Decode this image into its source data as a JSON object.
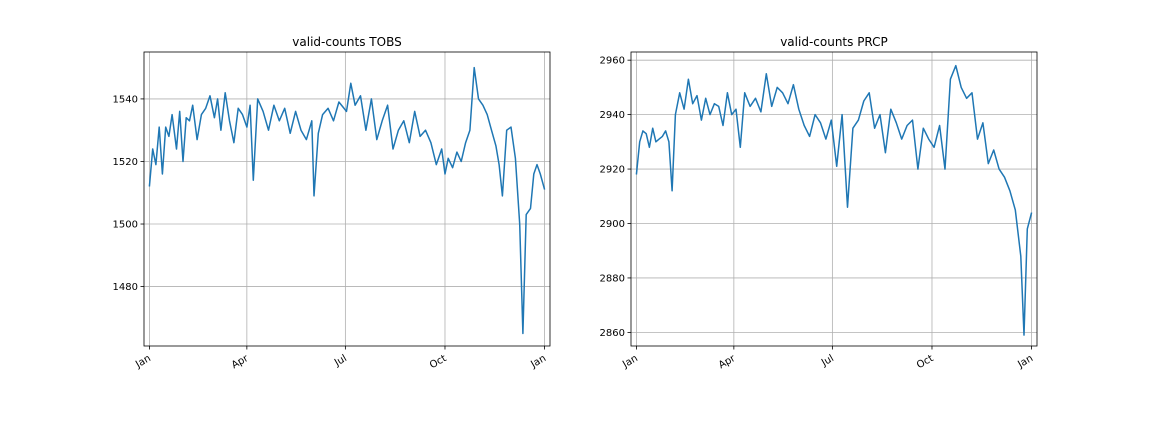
{
  "chart_data": [
    {
      "type": "line",
      "title": "valid-counts TOBS",
      "xlabel": "",
      "ylabel": "",
      "x_ticks": [
        "Jan",
        "Apr",
        "Jul",
        "Oct",
        "Jan"
      ],
      "y_ticks": [
        1480,
        1500,
        1520,
        1540
      ],
      "xlim": [
        -5,
        370
      ],
      "ylim": [
        1461,
        1555
      ],
      "grid": true,
      "color": "#1f77b4",
      "series": [
        {
          "x": [
            0,
            3,
            6,
            9,
            12,
            15,
            18,
            21,
            25,
            28,
            31,
            34,
            37,
            40,
            44,
            48,
            52,
            56,
            60,
            63,
            66,
            70,
            74,
            78,
            82,
            86,
            90,
            93,
            96,
            100,
            105,
            110,
            115,
            120,
            125,
            130,
            135,
            140,
            145,
            150,
            152,
            156,
            160,
            165,
            170,
            175,
            182,
            186,
            190,
            195,
            200,
            205,
            210,
            215,
            220,
            225,
            230,
            235,
            240,
            245,
            250,
            255,
            260,
            265,
            270,
            273,
            276,
            280,
            284,
            288,
            292,
            296,
            300,
            304,
            308,
            312,
            316,
            320,
            323,
            326,
            330,
            334,
            338,
            342,
            345,
            348,
            352,
            355,
            358,
            361,
            365
          ],
          "values": [
            1512,
            1524,
            1519,
            1531,
            1516,
            1531,
            1528,
            1535,
            1524,
            1536,
            1520,
            1534,
            1533,
            1538,
            1527,
            1535,
            1537,
            1541,
            1534,
            1540,
            1530,
            1542,
            1533,
            1526,
            1537,
            1535,
            1531,
            1538,
            1514,
            1540,
            1536,
            1530,
            1538,
            1533,
            1537,
            1529,
            1536,
            1530,
            1527,
            1533,
            1509,
            1529,
            1535,
            1537,
            1533,
            1539,
            1536,
            1545,
            1538,
            1541,
            1530,
            1540,
            1527,
            1533,
            1538,
            1524,
            1530,
            1533,
            1526,
            1536,
            1528,
            1530,
            1526,
            1519,
            1524,
            1516,
            1521,
            1518,
            1523,
            1520,
            1526,
            1530,
            1550,
            1540,
            1538,
            1535,
            1530,
            1525,
            1519,
            1509,
            1530,
            1531,
            1521,
            1500,
            1465,
            1503,
            1505,
            1516,
            1519,
            1516,
            1511
          ]
        }
      ]
    },
    {
      "type": "line",
      "title": "valid-counts PRCP",
      "xlabel": "",
      "ylabel": "",
      "x_ticks": [
        "Jan",
        "Apr",
        "Jul",
        "Oct",
        "Jan"
      ],
      "y_ticks": [
        2860,
        2880,
        2900,
        2920,
        2940,
        2960
      ],
      "xlim": [
        -5,
        370
      ],
      "ylim": [
        2855,
        2963
      ],
      "grid": true,
      "color": "#1f77b4",
      "series": [
        {
          "x": [
            0,
            3,
            6,
            9,
            12,
            15,
            18,
            21,
            24,
            27,
            30,
            33,
            36,
            40,
            44,
            48,
            52,
            56,
            60,
            64,
            68,
            72,
            76,
            80,
            84,
            88,
            92,
            96,
            100,
            105,
            110,
            115,
            120,
            125,
            130,
            135,
            140,
            145,
            150,
            155,
            160,
            165,
            170,
            175,
            180,
            185,
            190,
            195,
            200,
            205,
            210,
            215,
            220,
            225,
            230,
            235,
            240,
            245,
            250,
            255,
            260,
            265,
            270,
            275,
            280,
            285,
            290,
            295,
            300,
            305,
            310,
            315,
            320,
            325,
            330,
            335,
            340,
            345,
            350,
            355,
            358,
            361,
            365
          ],
          "values": [
            2918,
            2930,
            2934,
            2933,
            2928,
            2935,
            2930,
            2931,
            2932,
            2934,
            2930,
            2912,
            2940,
            2948,
            2942,
            2953,
            2944,
            2947,
            2938,
            2946,
            2940,
            2944,
            2943,
            2936,
            2948,
            2940,
            2942,
            2928,
            2948,
            2943,
            2946,
            2941,
            2955,
            2943,
            2950,
            2948,
            2944,
            2951,
            2942,
            2936,
            2932,
            2940,
            2937,
            2931,
            2938,
            2921,
            2940,
            2906,
            2935,
            2938,
            2945,
            2948,
            2935,
            2940,
            2926,
            2942,
            2937,
            2931,
            2936,
            2938,
            2920,
            2935,
            2931,
            2928,
            2936,
            2920,
            2953,
            2958,
            2950,
            2946,
            2948,
            2931,
            2937,
            2922,
            2927,
            2920,
            2917,
            2912,
            2905,
            2888,
            2859,
            2898,
            2904
          ]
        }
      ]
    }
  ]
}
